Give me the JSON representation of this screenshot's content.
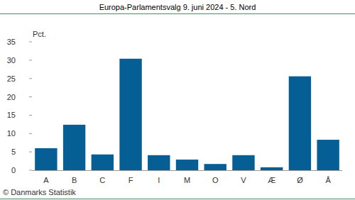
{
  "chart_data": {
    "type": "bar",
    "title": "Europa-Parlamentsvalg 9. juni 2024 - 5. Nord",
    "y_label": "Pct.",
    "source": "© Danmarks Statistik",
    "categories": [
      "A",
      "B",
      "C",
      "F",
      "I",
      "M",
      "O",
      "V",
      "Æ",
      "Ø",
      "Å"
    ],
    "values": [
      6.0,
      12.4,
      4.3,
      30.4,
      4.1,
      2.9,
      1.7,
      4.1,
      0.8,
      25.6,
      8.3
    ],
    "color": "#055f95",
    "ylim": [
      0,
      35
    ],
    "yticks": [
      0,
      5,
      10,
      15,
      20,
      25,
      30,
      35
    ],
    "grid": false
  }
}
